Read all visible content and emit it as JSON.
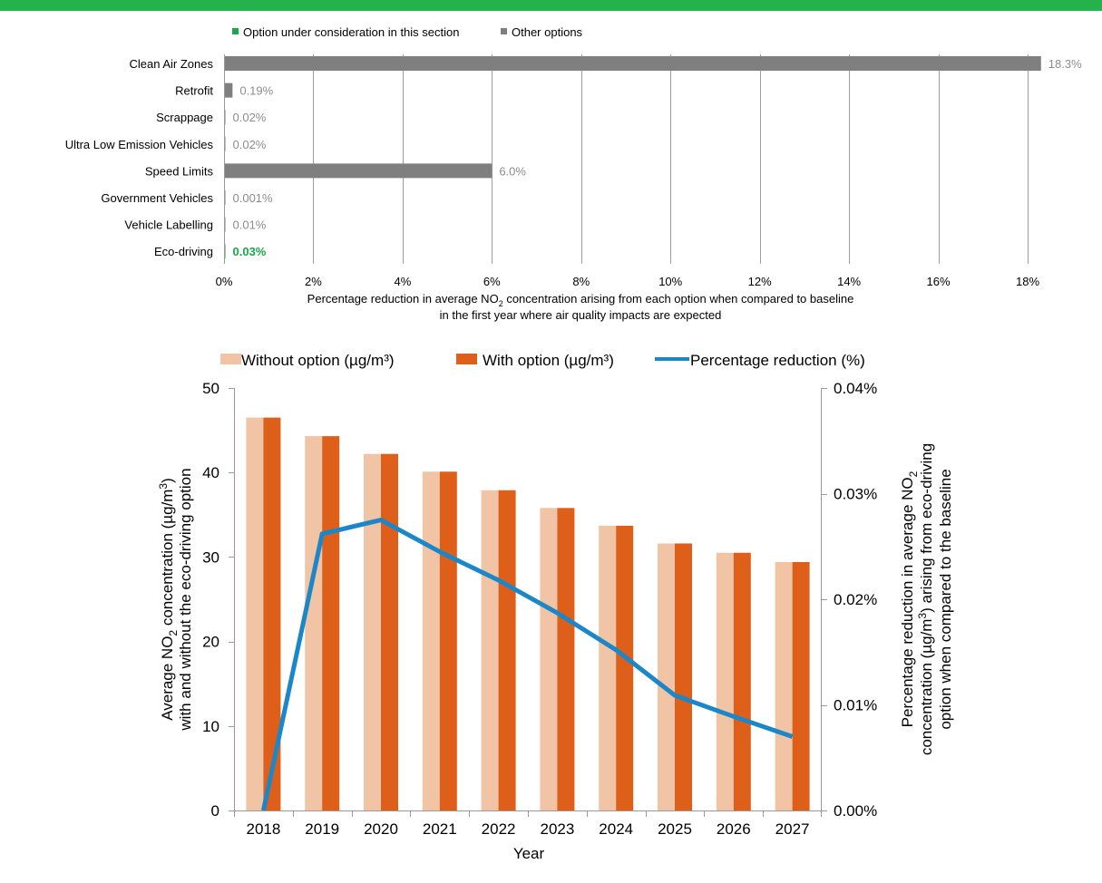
{
  "colors": {
    "accent_bar": "#23b24b",
    "option_green": "#19a84a",
    "other_gray": "#7f7f7f",
    "grid": "#999999",
    "without_option": "#f0c4a4",
    "with_option": "#dd5f1a",
    "line": "#1b87c9"
  },
  "chart_data": [
    {
      "type": "bar",
      "orientation": "horizontal",
      "legend": {
        "position": "top",
        "entries": [
          {
            "label": "Option under consideration in this section",
            "color": "#19a84a"
          },
          {
            "label": "Other options",
            "color": "#7f7f7f"
          }
        ]
      },
      "categories": [
        "Clean Air Zones",
        "Retrofit",
        "Scrappage",
        "Ultra Low Emission Vehicles",
        "Speed Limits",
        "Government Vehicles",
        "Vehicle Labelling",
        "Eco-driving"
      ],
      "values": [
        18.3,
        0.19,
        0.02,
        0.02,
        6.0,
        0.001,
        0.01,
        0.03
      ],
      "value_labels": [
        "18.3%",
        "0.19%",
        "0.02%",
        "0.02%",
        "6.0%",
        "0.001%",
        "0.01%",
        "0.03%"
      ],
      "highlighted": [
        "Eco-driving"
      ],
      "xlim": [
        0,
        18
      ],
      "xticks": [
        "0%",
        "2%",
        "4%",
        "6%",
        "8%",
        "10%",
        "12%",
        "14%",
        "16%",
        "18%"
      ],
      "xlabel_line1": "Percentage reduction in average NO",
      "xlabel_sub": "2",
      "xlabel_line1_end": " concentration arising from each option when compared to baseline",
      "xlabel_line2": "in the first year where air quality impacts are expected",
      "grid": true
    },
    {
      "type": "bar+line",
      "legend": {
        "position": "top",
        "entries": [
          {
            "label": "Without option (µg/m³)",
            "color": "#f0c4a4"
          },
          {
            "label": "With option (µg/m³)",
            "color": "#dd5f1a"
          },
          {
            "label": "Percentage reduction (%)",
            "color": "#1b87c9"
          }
        ]
      },
      "categories": [
        "2018",
        "2019",
        "2020",
        "2021",
        "2022",
        "2023",
        "2024",
        "2025",
        "2026",
        "2027"
      ],
      "series": [
        {
          "name": "Without option (µg/m³)",
          "axis": "left",
          "values": [
            46.5,
            44.3,
            42.2,
            40.1,
            37.9,
            35.8,
            33.7,
            31.6,
            30.5,
            29.4
          ]
        },
        {
          "name": "With option (µg/m³)",
          "axis": "left",
          "values": [
            46.5,
            44.3,
            42.2,
            40.1,
            37.9,
            35.8,
            33.7,
            31.6,
            30.5,
            29.4
          ]
        },
        {
          "name": "Percentage reduction (%)",
          "axis": "right",
          "values": [
            0.0,
            0.0262,
            0.0275,
            0.0245,
            0.0218,
            0.0187,
            0.0152,
            0.0109,
            0.0089,
            0.007
          ]
        }
      ],
      "ylim_left": [
        0,
        50
      ],
      "yticks_left": [
        "0",
        "10",
        "20",
        "30",
        "40",
        "50"
      ],
      "ylim_right": [
        0,
        0.04
      ],
      "yticks_right": [
        "0.00%",
        "0.01%",
        "0.02%",
        "0.03%",
        "0.04%"
      ],
      "xlabel": "Year",
      "ylabel_left_line1_a": "Average NO",
      "ylabel_left_line1_sub": "2",
      "ylabel_left_line1_b": " concentration (µg/m",
      "ylabel_left_line1_sup": "3",
      "ylabel_left_line1_c": ")",
      "ylabel_left_line2": "with and without the eco-driving option",
      "ylabel_right_line1_a": "Percentage reduction in average NO",
      "ylabel_right_line1_sub": "2",
      "ylabel_right_line2_a": "concentration (µg/m",
      "ylabel_right_line2_sup": "3",
      "ylabel_right_line2_b": ") arising from eco-driving",
      "ylabel_right_line3": "option when compared to the baseline",
      "grid": false
    }
  ]
}
